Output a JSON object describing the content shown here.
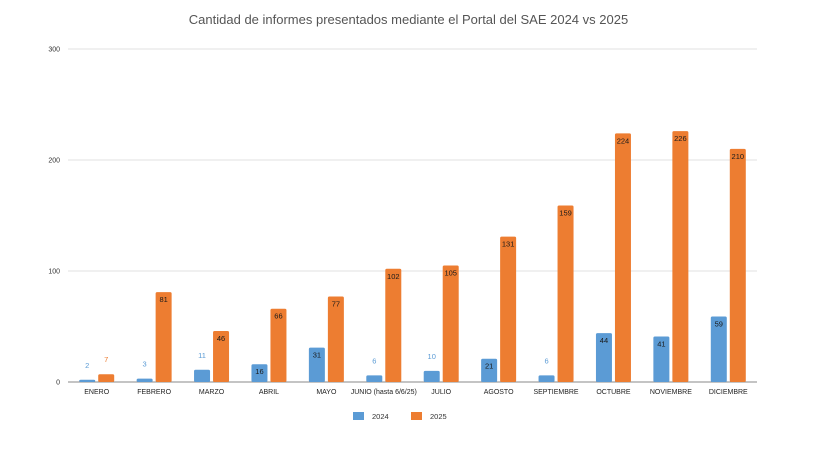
{
  "chart_data": {
    "type": "bar",
    "title": "Cantidad de informes presentados mediante el Portal del SAE 2024 vs 2025",
    "categories": [
      "ENERO",
      "FEBRERO",
      "MARZO",
      "ABRIL",
      "MAYO",
      "JUNIO (hasta 6/6/25)",
      "JULIO",
      "AGOSTO",
      "SEPTIEMBRE",
      "OCTUBRE",
      "NOVIEMBRE",
      "DICIEMBRE"
    ],
    "series": [
      {
        "name": "2024",
        "color": "#5b9bd5",
        "values": [
          2,
          3,
          11,
          16,
          31,
          6,
          10,
          21,
          6,
          44,
          41,
          59
        ]
      },
      {
        "name": "2025",
        "color": "#ed7d31",
        "values": [
          7,
          81,
          46,
          66,
          77,
          102,
          105,
          131,
          159,
          224,
          226,
          210
        ]
      }
    ],
    "ylim": [
      0,
      300
    ],
    "yticks": [
      0,
      100,
      200,
      300
    ],
    "xlabel": "",
    "ylabel": "",
    "grid": true,
    "legend": "bottom"
  }
}
